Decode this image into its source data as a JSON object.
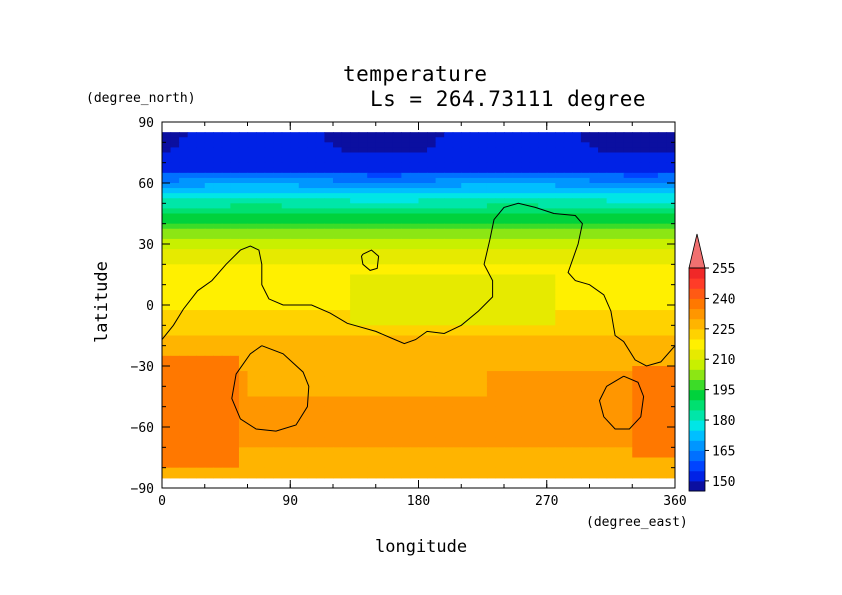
{
  "chart_data": {
    "type": "heatmap",
    "title": "temperature",
    "subtitle": "Ls = 264.73111 degree",
    "xlabel": "longitude",
    "ylabel": "latitude",
    "x_unit": "(degree_east)",
    "y_unit": "(degree_north)",
    "xlim": [
      0,
      360
    ],
    "ylim": [
      -90,
      90
    ],
    "x_ticks": [
      "0",
      "90",
      "180",
      "270",
      "360"
    ],
    "y_ticks": [
      "90",
      "60",
      "30",
      "0",
      "−30",
      "−60",
      "−90"
    ],
    "colorbar": {
      "labels": [
        "255",
        "240",
        "225",
        "210",
        "195",
        "180",
        "165",
        "150"
      ],
      "levels": [
        145,
        150,
        155,
        160,
        165,
        170,
        175,
        180,
        185,
        190,
        195,
        200,
        205,
        210,
        215,
        220,
        225,
        230,
        235,
        240,
        245,
        250,
        255,
        260
      ],
      "extend": "max",
      "colors": [
        "#0b0fa0",
        "#0022e6",
        "#0044ff",
        "#0070ff",
        "#0096ff",
        "#00bfff",
        "#00e6e6",
        "#00e6a8",
        "#00e070",
        "#00d23c",
        "#3cdc28",
        "#8ce614",
        "#c8f000",
        "#e6ea00",
        "#fff000",
        "#ffd200",
        "#ffb400",
        "#ff9600",
        "#ff7800",
        "#ff5a14",
        "#ff3c28",
        "#f02828",
        "#f07070"
      ]
    },
    "data_extent": {
      "lat": [
        -85,
        85
      ]
    },
    "lat_profile": {
      "lat": [
        85,
        75,
        65,
        55,
        45,
        35,
        25,
        15,
        5,
        -5,
        -15,
        -25,
        -35,
        -45,
        -55,
        -65,
        -75,
        -85
      ],
      "temperature": [
        150,
        152,
        160,
        175,
        190,
        202,
        213,
        218,
        218,
        221,
        225,
        228,
        231,
        233,
        232,
        231,
        229,
        227
      ]
    },
    "features": [
      {
        "region": "southwest warm region",
        "lon": [
          0,
          55
        ],
        "lat": [
          -80,
          -25
        ],
        "temperature": 238
      },
      {
        "region": "southeast warm region",
        "lon": [
          330,
          360
        ],
        "lat": [
          -75,
          -30
        ],
        "temperature": 238
      },
      {
        "region": "south-central warm band",
        "lon": [
          60,
          230
        ],
        "lat": [
          -45,
          -28
        ],
        "temperature": 226
      },
      {
        "region": "central-north cool region",
        "lon": [
          130,
          275
        ],
        "lat": [
          -10,
          15
        ],
        "temperature": 212
      },
      {
        "region": "northern polar cold region",
        "lon": [
          0,
          360
        ],
        "lat": [
          65,
          85
        ],
        "temperature": 150
      }
    ],
    "contours": [
      {
        "name": "continental outline",
        "points": [
          [
            0,
            -17
          ],
          [
            8,
            -10
          ],
          [
            15,
            -2
          ],
          [
            25,
            7
          ],
          [
            35,
            12
          ],
          [
            45,
            20
          ],
          [
            55,
            27
          ],
          [
            62,
            29
          ],
          [
            68,
            27
          ],
          [
            70,
            20
          ],
          [
            70,
            10
          ],
          [
            75,
            3
          ],
          [
            85,
            0
          ],
          [
            105,
            0
          ],
          [
            118,
            -4
          ],
          [
            130,
            -9
          ],
          [
            150,
            -13
          ],
          [
            160,
            -16
          ],
          [
            170,
            -19
          ],
          [
            178,
            -17
          ],
          [
            186,
            -13
          ],
          [
            198,
            -14
          ],
          [
            210,
            -10
          ],
          [
            222,
            -3
          ],
          [
            232,
            4
          ],
          [
            232,
            12
          ],
          [
            226,
            20
          ],
          [
            230,
            32
          ],
          [
            233,
            42
          ],
          [
            240,
            48
          ],
          [
            250,
            50
          ],
          [
            262,
            48
          ],
          [
            275,
            45
          ],
          [
            290,
            44
          ],
          [
            295,
            40
          ],
          [
            292,
            30
          ],
          [
            285,
            16
          ],
          [
            290,
            12
          ],
          [
            300,
            10
          ],
          [
            310,
            5
          ],
          [
            315,
            -3
          ],
          [
            318,
            -15
          ],
          [
            324,
            -18
          ],
          [
            332,
            -27
          ],
          [
            340,
            -30
          ],
          [
            350,
            -28
          ],
          [
            360,
            -20
          ]
        ]
      },
      {
        "name": "northern small loop",
        "points": [
          [
            141,
            25
          ],
          [
            147,
            27
          ],
          [
            152,
            24
          ],
          [
            151,
            18
          ],
          [
            146,
            17
          ],
          [
            141,
            20
          ],
          [
            140,
            24
          ],
          [
            141,
            25
          ]
        ]
      },
      {
        "name": "southwest crater outline",
        "points": [
          [
            70,
            -20
          ],
          [
            85,
            -24
          ],
          [
            99,
            -33
          ],
          [
            103,
            -40
          ],
          [
            102,
            -50
          ],
          [
            94,
            -59
          ],
          [
            80,
            -62
          ],
          [
            66,
            -61
          ],
          [
            55,
            -56
          ],
          [
            49,
            -46
          ],
          [
            52,
            -34
          ],
          [
            62,
            -24
          ],
          [
            70,
            -20
          ]
        ]
      },
      {
        "name": "southeast crater outline",
        "points": [
          [
            324,
            -35
          ],
          [
            334,
            -38
          ],
          [
            338,
            -45
          ],
          [
            336,
            -55
          ],
          [
            328,
            -61
          ],
          [
            318,
            -61
          ],
          [
            310,
            -55
          ],
          [
            307,
            -47
          ],
          [
            312,
            -40
          ],
          [
            324,
            -35
          ]
        ]
      }
    ]
  }
}
